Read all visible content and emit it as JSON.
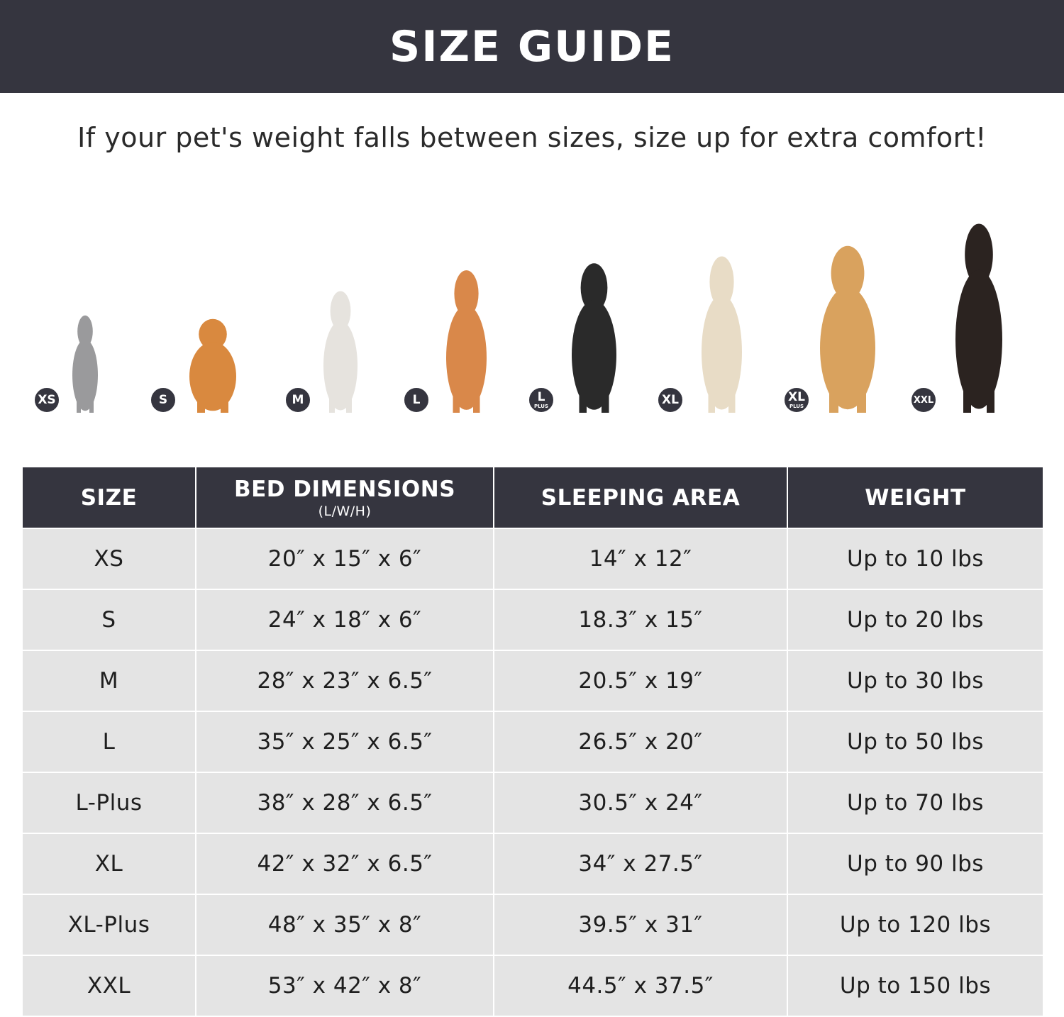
{
  "banner": {
    "title": "SIZE GUIDE"
  },
  "subtitle": "If your pet's weight falls between sizes, size up for extra comfort!",
  "pets": [
    {
      "badge": "XS",
      "badge_sub": "",
      "animal": "cat",
      "color": "#9a9a9c"
    },
    {
      "badge": "S",
      "badge_sub": "",
      "animal": "pomeranian",
      "color": "#d9893f"
    },
    {
      "badge": "M",
      "badge_sub": "",
      "animal": "french-bulldog",
      "color": "#e6e3de"
    },
    {
      "badge": "L",
      "badge_sub": "",
      "animal": "shiba-inu",
      "color": "#d9884a"
    },
    {
      "badge": "L",
      "badge_sub": "PLUS",
      "animal": "border-collie",
      "color": "#2a2a2a"
    },
    {
      "badge": "XL",
      "badge_sub": "",
      "animal": "labrador",
      "color": "#e8dcc6"
    },
    {
      "badge": "XL",
      "badge_sub": "PLUS",
      "animal": "golden-retriever",
      "color": "#d9a25e"
    },
    {
      "badge": "XXL",
      "badge_sub": "",
      "animal": "doberman",
      "color": "#2b2320"
    }
  ],
  "table": {
    "headers": [
      {
        "label": "SIZE",
        "sub": ""
      },
      {
        "label": "BED DIMENSIONS",
        "sub": "(L/W/H)"
      },
      {
        "label": "SLEEPING AREA",
        "sub": ""
      },
      {
        "label": "WEIGHT",
        "sub": ""
      }
    ],
    "rows": [
      [
        "XS",
        "20″ x 15″ x 6″",
        "14″ x 12″",
        "Up to 10 lbs"
      ],
      [
        "S",
        "24″ x 18″ x 6″",
        "18.3″ x 15″",
        "Up to 20 lbs"
      ],
      [
        "M",
        "28″ x 23″ x 6.5″",
        "20.5″ x 19″",
        "Up to 30 lbs"
      ],
      [
        "L",
        "35″ x 25″ x 6.5″",
        "26.5″ x 20″",
        "Up to 50 lbs"
      ],
      [
        "L-Plus",
        "38″ x 28″ x 6.5″",
        "30.5″ x 24″",
        "Up to 70 lbs"
      ],
      [
        "XL",
        "42″ x 32″ x 6.5″",
        "34″ x 27.5″",
        "Up to 90 lbs"
      ],
      [
        "XL-Plus",
        "48″ x 35″ x 8″",
        "39.5″ x 31″",
        "Up to 120 lbs"
      ],
      [
        "XXL",
        "53″ x 42″ x 8″",
        "44.5″ x 37.5″",
        "Up to 150 lbs"
      ]
    ]
  },
  "colors": {
    "header_bg": "#35353f",
    "row_bg": "#e4e4e4"
  }
}
